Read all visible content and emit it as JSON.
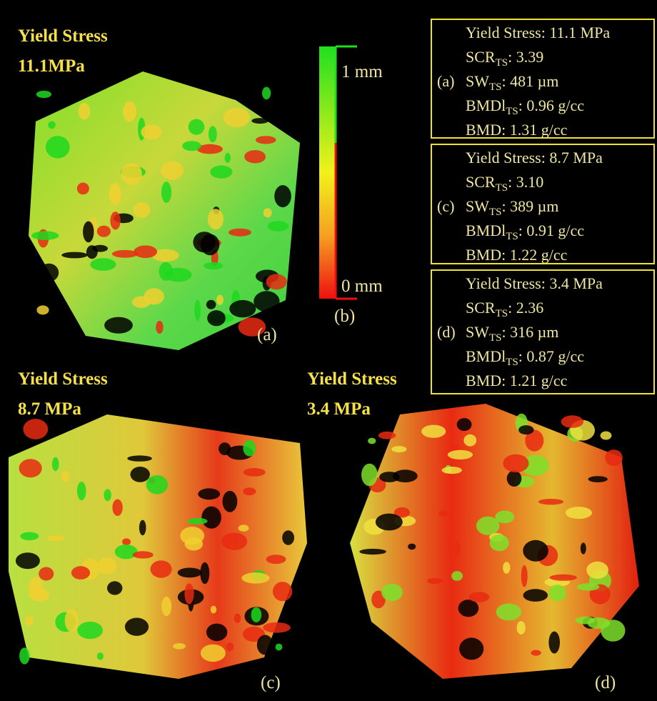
{
  "panels": [
    {
      "title": "Yield Stress",
      "value": "11.1MPa",
      "label": "(a)"
    },
    {
      "title": "Yield Stress",
      "value": "8.7 MPa",
      "label": "(c)"
    },
    {
      "title": "Yield Stress",
      "value": "3.4 MPa",
      "label": "(d)"
    }
  ],
  "colorbar": {
    "top": "1 mm",
    "bottom": "0 mm",
    "label": "(b)"
  },
  "info_boxes": [
    {
      "label": "(a)",
      "lines": [
        {
          "text": "Yield Stress: 11.1 MPa"
        },
        {
          "text": "SCR",
          "sub": "TS",
          "rest": ": 3.39"
        },
        {
          "text": "SW",
          "sub": "TS",
          "rest": ": 481 µm"
        },
        {
          "text": "BMDl",
          "sub": "TS",
          "rest": ": 0.96 g/cc"
        },
        {
          "text": "BMD: 1.31 g/cc"
        }
      ]
    },
    {
      "label": "(c)",
      "lines": [
        {
          "text": "Yield Stress: 8.7 MPa"
        },
        {
          "text": "SCR",
          "sub": "TS",
          "rest": ": 3.10"
        },
        {
          "text": "SW",
          "sub": "TS",
          "rest": ": 389 µm"
        },
        {
          "text": "BMDl",
          "sub": "TS",
          "rest": ": 0.91 g/cc"
        },
        {
          "text": "BMD: 1.22 g/cc"
        }
      ]
    },
    {
      "label": "(d)",
      "lines": [
        {
          "text": "Yield Stress: 3.4 MPa"
        },
        {
          "text": "SCR",
          "sub": "TS",
          "rest": ": 2.36"
        },
        {
          "text": "SW",
          "sub": "TS",
          "rest": ": 316 µm"
        },
        {
          "text": "BMDl",
          "sub": "TS",
          "rest": ": 0.87 g/cc"
        },
        {
          "text": "BMD: 1.21 g/cc"
        }
      ]
    }
  ]
}
